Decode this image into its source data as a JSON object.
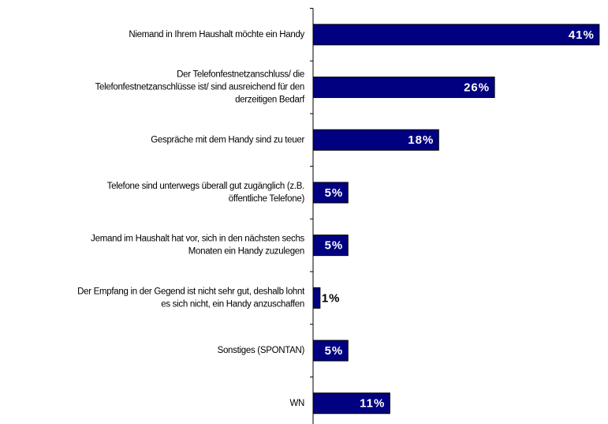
{
  "chart_data": {
    "type": "bar",
    "orientation": "horizontal",
    "categories": [
      [
        "Niemand in Ihrem Haushalt möchte ein Handy"
      ],
      [
        "Der Telefonfestnetzanschluss/ die",
        "Telefonfestnetzanschlüsse ist/ sind ausreichend für den",
        "derzeitigen Bedarf"
      ],
      [
        "Gespräche mit dem Handy sind zu teuer"
      ],
      [
        "Telefone sind unterwegs überall gut zugänglich (z.B.",
        "öffentliche Telefone)"
      ],
      [
        "Jemand im Haushalt hat vor, sich in den nächsten sechs",
        "Monaten ein Handy zuzulegen"
      ],
      [
        "Der Empfang in der Gegend ist nicht sehr gut, deshalb lohnt",
        "es sich nicht, ein Handy anzuschaffen"
      ],
      [
        "Sonstiges (SPONTAN)"
      ],
      [
        "WN"
      ]
    ],
    "values": [
      41,
      26,
      18,
      5,
      5,
      1,
      5,
      11
    ],
    "value_labels": [
      "41%",
      "26%",
      "18%",
      "5%",
      "5%",
      "1%",
      "5%",
      "11%"
    ],
    "color": "#000080"
  }
}
